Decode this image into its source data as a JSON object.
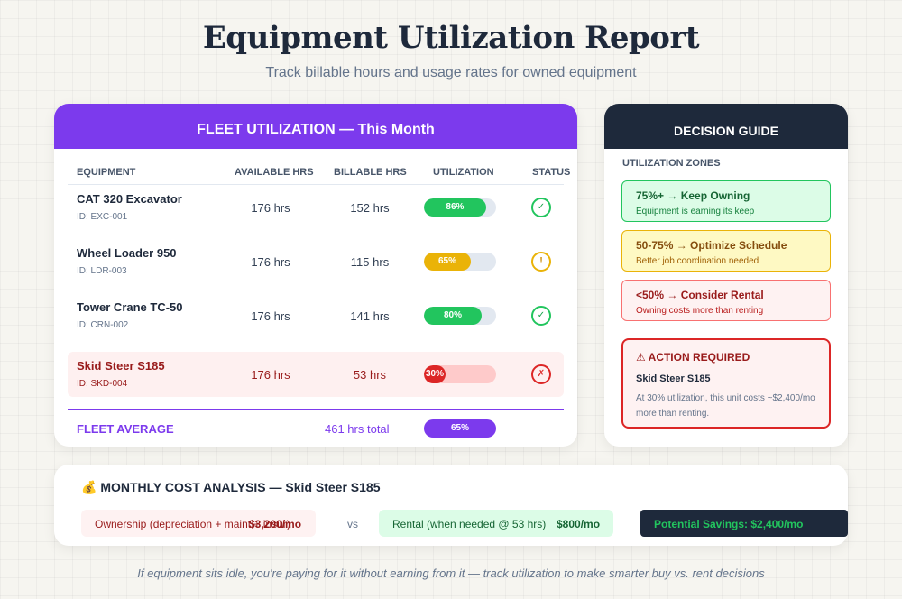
{
  "header": {
    "title": "Equipment Utilization Report",
    "subtitle": "Track billable hours and usage rates for owned equipment"
  },
  "fleet": {
    "title": "FLEET UTILIZATION — This Month",
    "columns": [
      "EQUIPMENT",
      "AVAILABLE HRS",
      "BILLABLE HRS",
      "UTILIZATION",
      "STATUS"
    ],
    "rows": [
      {
        "name": "CAT 320 Excavator",
        "id": "ID: EXC-001",
        "available": "176 hrs",
        "billable": "152 hrs",
        "utilization": 86,
        "utilization_label": "86%",
        "status": "ok",
        "status_icon": "✓",
        "bar_color": "#22c55e"
      },
      {
        "name": "Wheel Loader 950",
        "id": "ID: LDR-003",
        "available": "176 hrs",
        "billable": "115 hrs",
        "utilization": 65,
        "utilization_label": "65%",
        "status": "warn",
        "status_icon": "!",
        "bar_color": "#eab308"
      },
      {
        "name": "Tower Crane TC-50",
        "id": "ID: CRN-002",
        "available": "176 hrs",
        "billable": "141 hrs",
        "utilization": 80,
        "utilization_label": "80%",
        "status": "ok",
        "status_icon": "✓",
        "bar_color": "#22c55e"
      },
      {
        "name": "Skid Steer S185",
        "id": "ID: SKD-004",
        "available": "176 hrs",
        "billable": "53 hrs",
        "utilization": 30,
        "utilization_label": "30%",
        "status": "bad",
        "status_icon": "✗",
        "bar_color": "#dc2626"
      }
    ],
    "average": {
      "label": "FLEET AVERAGE",
      "total": "461 hrs total",
      "utilization_label": "65%"
    },
    "accent_color": "#7c3aed"
  },
  "guide": {
    "title": "DECISION GUIDE",
    "zones_label": "UTILIZATION ZONES",
    "zones": [
      {
        "title": "75%+ → Keep Owning",
        "desc": "Equipment is earning its keep"
      },
      {
        "title": "50-75% → Optimize Schedule",
        "desc": "Better job coordination needed"
      },
      {
        "title": "<50% → Consider Rental",
        "desc": "Owning costs more than renting"
      }
    ],
    "action": {
      "title": "⚠ ACTION REQUIRED",
      "unit": "Skid Steer S185",
      "desc": "At 30% utilization, this unit costs ~$2,400/mo more than renting."
    }
  },
  "cost": {
    "title": "💰 MONTHLY COST ANALYSIS — Skid Steer S185",
    "ownership_label": "Ownership (depreciation + maint + insur)",
    "ownership_value": "$3,200/mo",
    "vs": "vs",
    "rental_label": "Rental (when needed @ 53 hrs)",
    "rental_value": "$800/mo",
    "savings": "Potential Savings: $2,400/mo"
  },
  "footer": "If equipment sits idle, you're paying for it without earning from it — track utilization to make smarter buy vs. rent decisions"
}
